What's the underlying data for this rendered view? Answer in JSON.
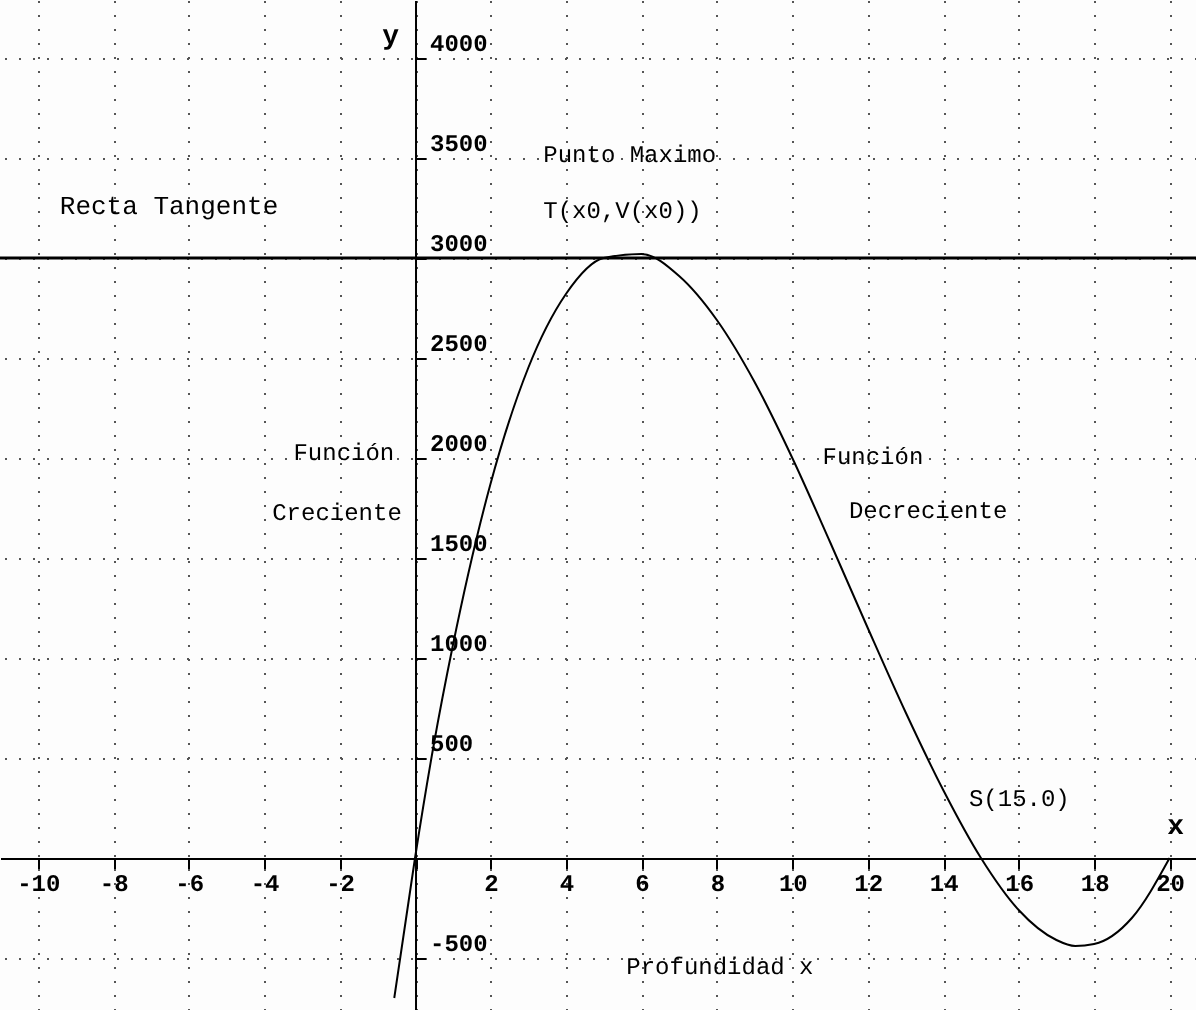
{
  "chart_data": {
    "type": "line",
    "xlabel": "x",
    "ylabel": "y",
    "x": [
      -0.55,
      0,
      0.5,
      1,
      2,
      3,
      4,
      5,
      6,
      7,
      8,
      9,
      10,
      11,
      12,
      13,
      14,
      15,
      16,
      17,
      17.5,
      18,
      19,
      20
    ],
    "values": [
      -700,
      0,
      570,
      1060,
      1870,
      2450,
      2820,
      3000,
      3020,
      2910,
      2690,
      2380,
      2000,
      1580,
      1150,
      730,
      340,
      0,
      -260,
      -410,
      -440,
      -430,
      -300,
      0
    ],
    "color": "#000000",
    "xlim": [
      -11,
      20.7
    ],
    "ylim": [
      -760,
      4290
    ],
    "xticks": [
      -10,
      -8,
      -6,
      -4,
      -2,
      {
        "value": 0,
        "label": null
      },
      2,
      4,
      6,
      8,
      10,
      12,
      14,
      16,
      18,
      20
    ],
    "yticks": [
      -500,
      {
        "value": 0,
        "label": null
      },
      500,
      1000,
      1500,
      2000,
      2500,
      3000,
      3500,
      4000
    ],
    "grid": true,
    "ref_lines": [
      {
        "axis": "y",
        "value": 3000,
        "label": "Recta Tangente"
      }
    ],
    "annotations": [
      "Punto Maximo",
      "T(x0,V(x0))",
      "Función",
      "Creciente",
      "Función",
      "Decreciente",
      {
        "text": "S(15.0)",
        "x": 15,
        "y": 0
      },
      "Profundidad x"
    ]
  }
}
